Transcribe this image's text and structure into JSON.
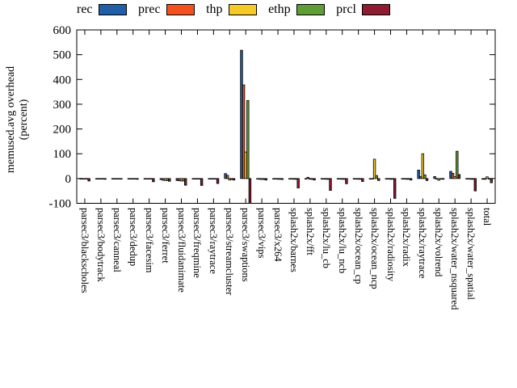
{
  "y_axis": {
    "label_line1": "memused.avg overhead",
    "label_line2": "(percent)"
  },
  "chart_data": {
    "type": "bar",
    "title": "",
    "xlabel": "",
    "ylabel": "memused.avg overhead (percent)",
    "ylim": [
      -100,
      600
    ],
    "yticks": [
      -100,
      0,
      100,
      200,
      300,
      400,
      500,
      600
    ],
    "grid": false,
    "legend_position": "top-horizontal",
    "categories": [
      "parsec3/blackscholes",
      "parsec3/bodytrack",
      "parsec3/canneal",
      "parsec3/dedup",
      "parsec3/facesim",
      "parsec3/ferret",
      "parsec3/fluidanimate",
      "parsec3/freqmine",
      "parsec3/raytrace",
      "parsec3/streamcluster",
      "parsec3/swaptions",
      "parsec3/vips",
      "parsec3/x264",
      "splash2x/barnes",
      "splash2x/fft",
      "splash2x/lu_cb",
      "splash2x/lu_ncb",
      "splash2x/ocean_cp",
      "splash2x/ocean_ncp",
      "splash2x/radiosity",
      "splash2x/radix",
      "splash2x/raytrace",
      "splash2x/volrend",
      "splash2x/water_nsquared",
      "splash2x/water_spatial",
      "total"
    ],
    "series": [
      {
        "name": "rec",
        "color": "#1f5fa8",
        "values": [
          -2,
          -1,
          -1,
          -2,
          -2,
          -4,
          -8,
          -2,
          -2,
          20,
          518,
          -2,
          -1,
          -2,
          -2,
          -2,
          -2,
          -2,
          -1,
          -2,
          -2,
          34,
          8,
          29,
          -2,
          -3
        ]
      },
      {
        "name": "prec",
        "color": "#f4511e",
        "values": [
          -2,
          -1,
          -1,
          -2,
          -2,
          -7,
          -9,
          -2,
          -2,
          13,
          378,
          -3,
          -2,
          -2,
          5,
          -2,
          -2,
          -2,
          -1,
          -2,
          -2,
          8,
          -1,
          21,
          -2,
          -3
        ]
      },
      {
        "name": "thp",
        "color": "#f5c926",
        "values": [
          -2,
          -2,
          -2,
          -2,
          -2,
          -8,
          -10,
          -2,
          -2,
          -6,
          107,
          -4,
          -3,
          -3,
          -3,
          -3,
          -3,
          -3,
          78,
          -3,
          -3,
          100,
          -7,
          8,
          -3,
          7
        ]
      },
      {
        "name": "ethp",
        "color": "#5f9e36",
        "values": [
          -2,
          -2,
          -2,
          -2,
          -2,
          -8,
          -10,
          -2,
          -2,
          -4,
          315,
          -4,
          -3,
          -3,
          -3,
          -3,
          -3,
          -3,
          12,
          -3,
          -3,
          15,
          -2,
          110,
          -3,
          -2
        ]
      },
      {
        "name": "prcl",
        "color": "#8e1b30",
        "values": [
          -10,
          -3,
          -2,
          -3,
          -13,
          -11,
          -27,
          -28,
          -20,
          -6,
          -100,
          -6,
          -4,
          -38,
          -6,
          -48,
          -21,
          -12,
          -8,
          -80,
          -6,
          -8,
          -3,
          16,
          -50,
          -17
        ]
      }
    ]
  }
}
